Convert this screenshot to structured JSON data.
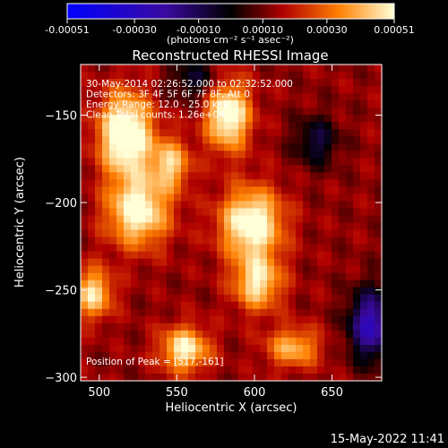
{
  "chart_data": {
    "type": "heatmap",
    "title": "Reconstructed RHESSI Image",
    "xlabel": "Heliocentric X (arcsec)",
    "ylabel": "Heliocentric Y (arcsec)",
    "xlim": [
      488,
      682
    ],
    "ylim": [
      -302,
      -121
    ],
    "x_ticks": [
      500,
      550,
      600,
      650
    ],
    "y_ticks": [
      -150,
      -200,
      -250,
      -300
    ],
    "colorbar": {
      "range": [
        -0.00051,
        0.00051
      ],
      "ticks": [
        -0.00051,
        -0.0003,
        -0.0001,
        0.0001,
        0.0003,
        0.00051
      ],
      "tick_labels": [
        "-0.00051",
        "-0.00030",
        "-0.00010",
        "0.00010",
        "0.00030",
        "0.00051"
      ],
      "unit_label": "(photons cm⁻² s⁻¹ asec⁻²)"
    },
    "annotations": [
      "30-May-2014 02:26:52.000 to 02:32:52.000",
      "Detectors: 3F 4F 5F 6F 7F 8F, Att 0",
      "Energy Range: 12.0 - 25.0 keV",
      "Clean     Total counts: 1.26e+04"
    ],
    "peak_label": "Position of Peak = [517,-161]",
    "sources": [
      {
        "x": 517,
        "y": -161,
        "value": 0.00051,
        "sx": 12,
        "sy": 16
      },
      {
        "x": 525,
        "y": -205,
        "value": 0.00042,
        "sx": 14,
        "sy": 14
      },
      {
        "x": 583,
        "y": -150,
        "value": 0.00044,
        "sx": 10,
        "sy": 14
      },
      {
        "x": 598,
        "y": -212,
        "value": 0.00045,
        "sx": 14,
        "sy": 14
      },
      {
        "x": 602,
        "y": -246,
        "value": 0.00035,
        "sx": 11,
        "sy": 11
      },
      {
        "x": 496,
        "y": -252,
        "value": 0.00034,
        "sx": 9,
        "sy": 10
      },
      {
        "x": 555,
        "y": -284,
        "value": 0.00038,
        "sx": 11,
        "sy": 9
      },
      {
        "x": 625,
        "y": -283,
        "value": 0.00028,
        "sx": 12,
        "sy": 8
      },
      {
        "x": 546,
        "y": -178,
        "value": 0.0003,
        "sx": 9,
        "sy": 10
      }
    ],
    "negative_sources": [
      {
        "x": 675,
        "y": -270,
        "value": -0.0004,
        "sx": 10,
        "sy": 14
      },
      {
        "x": 640,
        "y": -165,
        "value": -0.0002,
        "sx": 10,
        "sy": 10
      },
      {
        "x": 562,
        "y": -130,
        "value": -0.00018,
        "sx": 12,
        "sy": 8
      }
    ]
  },
  "footer": {
    "date": "15-May-2022 11:41"
  }
}
